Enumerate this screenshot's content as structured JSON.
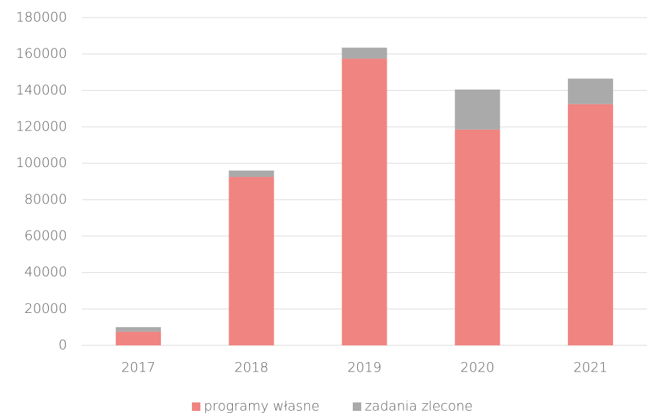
{
  "chart_data": {
    "type": "stacked_bar",
    "categories": [
      "2017",
      "2018",
      "2019",
      "2020",
      "2021"
    ],
    "series": [
      {
        "name": "programy własne",
        "color": "#f08480",
        "values": [
          7500,
          92500,
          157500,
          118500,
          132500
        ]
      },
      {
        "name": "zadania zlecone",
        "color": "#aaaaaa",
        "values": [
          2500,
          3500,
          6000,
          22000,
          14000
        ]
      }
    ],
    "ylim": [
      0,
      180000
    ],
    "yticks": [
      0,
      20000,
      40000,
      60000,
      80000,
      100000,
      120000,
      140000,
      160000,
      180000
    ],
    "grid": true,
    "legend": "bottom"
  }
}
